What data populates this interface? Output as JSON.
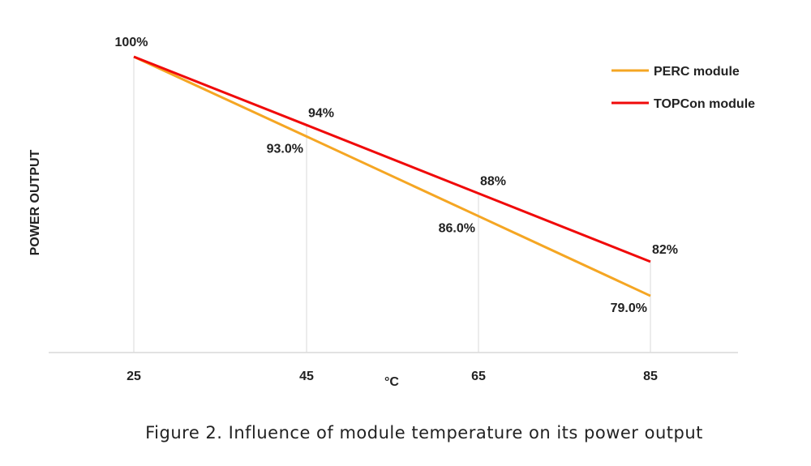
{
  "chart_data": {
    "type": "line",
    "title": "",
    "xlabel": "°C",
    "ylabel": "POWER OUTPUT",
    "categories": [
      "25",
      "45",
      "65",
      "85"
    ],
    "series": [
      {
        "name": "PERC module",
        "color": "#F5A623",
        "values": [
          100,
          93.0,
          86.0,
          79.0
        ],
        "labels": [
          "",
          "93.0%",
          "86.0%",
          "79.0%"
        ]
      },
      {
        "name": "TOPCon module",
        "color": "#F00A0A",
        "values": [
          100,
          94,
          88,
          82
        ],
        "labels": [
          "100%",
          "94%",
          "88%",
          "82%"
        ]
      }
    ],
    "ylim": [
      74,
      100
    ],
    "grid": "vertical at categories",
    "legend_position": "top-right"
  },
  "caption": "Figure 2. Influence of module temperature on its power output"
}
